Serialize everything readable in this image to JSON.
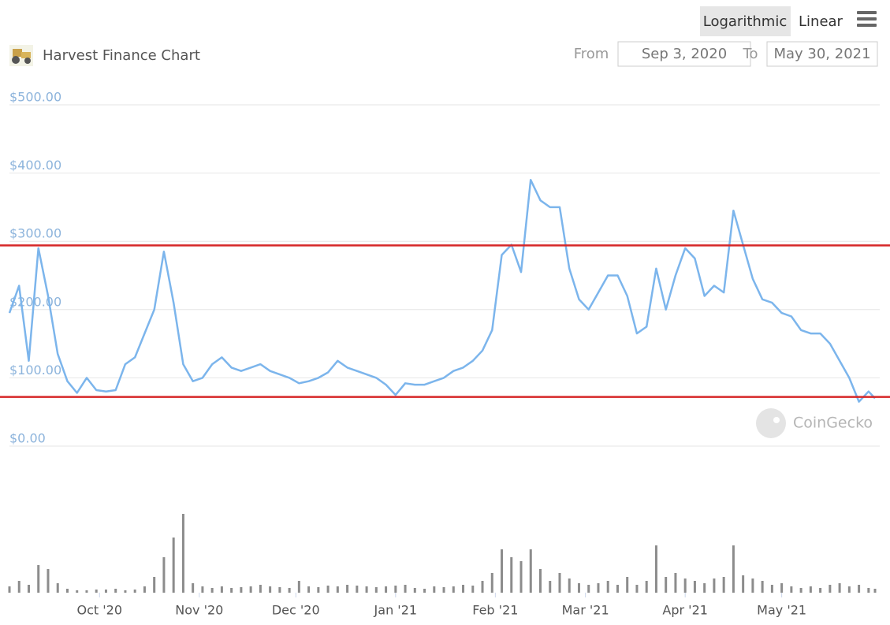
{
  "chart_data": {
    "type": "line",
    "title": "Harvest Finance Chart",
    "controls": {
      "scale_buttons": [
        "Logarithmic",
        "Linear"
      ],
      "from_label": "From",
      "from_value": "Sep 3, 2020",
      "to_label": "To",
      "to_value": "May 30, 2021"
    },
    "watermark": "CoinGecko",
    "log_scale": false,
    "grid": true,
    "color": "#7cb5ec",
    "x": [
      "2020-09-03",
      "2020-09-06",
      "2020-09-09",
      "2020-09-12",
      "2020-09-15",
      "2020-09-18",
      "2020-09-21",
      "2020-09-24",
      "2020-09-27",
      "2020-09-30",
      "2020-10-03",
      "2020-10-06",
      "2020-10-09",
      "2020-10-12",
      "2020-10-15",
      "2020-10-18",
      "2020-10-21",
      "2020-10-24",
      "2020-10-27",
      "2020-10-30",
      "2020-11-02",
      "2020-11-05",
      "2020-11-08",
      "2020-11-11",
      "2020-11-14",
      "2020-11-17",
      "2020-11-20",
      "2020-11-23",
      "2020-11-26",
      "2020-11-29",
      "2020-12-02",
      "2020-12-05",
      "2020-12-08",
      "2020-12-11",
      "2020-12-14",
      "2020-12-17",
      "2020-12-20",
      "2020-12-23",
      "2020-12-26",
      "2020-12-29",
      "2021-01-01",
      "2021-01-04",
      "2021-01-07",
      "2021-01-10",
      "2021-01-13",
      "2021-01-16",
      "2021-01-19",
      "2021-01-22",
      "2021-01-25",
      "2021-01-28",
      "2021-01-31",
      "2021-02-03",
      "2021-02-06",
      "2021-02-09",
      "2021-02-12",
      "2021-02-15",
      "2021-02-18",
      "2021-02-21",
      "2021-02-24",
      "2021-02-27",
      "2021-03-02",
      "2021-03-05",
      "2021-03-08",
      "2021-03-11",
      "2021-03-14",
      "2021-03-17",
      "2021-03-20",
      "2021-03-23",
      "2021-03-26",
      "2021-03-29",
      "2021-04-01",
      "2021-04-04",
      "2021-04-07",
      "2021-04-10",
      "2021-04-13",
      "2021-04-16",
      "2021-04-19",
      "2021-04-22",
      "2021-04-25",
      "2021-04-28",
      "2021-05-01",
      "2021-05-04",
      "2021-05-07",
      "2021-05-10",
      "2021-05-13",
      "2021-05-16",
      "2021-05-19",
      "2021-05-22",
      "2021-05-25",
      "2021-05-28",
      "2021-05-30"
    ],
    "values": [
      195,
      235,
      125,
      290,
      220,
      135,
      95,
      78,
      100,
      82,
      80,
      82,
      120,
      130,
      165,
      200,
      285,
      210,
      120,
      95,
      100,
      120,
      130,
      115,
      110,
      115,
      120,
      110,
      105,
      100,
      92,
      95,
      100,
      108,
      125,
      115,
      110,
      105,
      100,
      90,
      75,
      92,
      90,
      90,
      95,
      100,
      110,
      115,
      125,
      140,
      170,
      280,
      295,
      255,
      390,
      360,
      350,
      350,
      260,
      215,
      200,
      225,
      250,
      250,
      220,
      165,
      175,
      260,
      200,
      250,
      290,
      275,
      220,
      235,
      225,
      345,
      295,
      245,
      215,
      210,
      195,
      190,
      170,
      165,
      165,
      150,
      125,
      100,
      65,
      80,
      70
    ],
    "volume": {
      "color": "#8c8c8c",
      "values": [
        8,
        15,
        10,
        35,
        30,
        12,
        5,
        3,
        3,
        4,
        4,
        5,
        3,
        4,
        8,
        20,
        45,
        70,
        100,
        12,
        8,
        6,
        8,
        6,
        7,
        8,
        10,
        8,
        7,
        6,
        15,
        8,
        7,
        9,
        8,
        10,
        9,
        8,
        7,
        8,
        9,
        10,
        6,
        5,
        8,
        7,
        8,
        10,
        9,
        15,
        25,
        55,
        45,
        40,
        55,
        30,
        15,
        25,
        18,
        12,
        10,
        12,
        15,
        10,
        20,
        10,
        15,
        60,
        20,
        25,
        18,
        15,
        12,
        18,
        20,
        60,
        22,
        18,
        15,
        10,
        12,
        8,
        6,
        8,
        6,
        10,
        12,
        8,
        10,
        6,
        5
      ]
    },
    "xlim": [
      "2020-09-03",
      "2021-05-30"
    ],
    "xticks": [
      {
        "value": "2020-10-01",
        "label": "Oct '20"
      },
      {
        "value": "2020-11-01",
        "label": "Nov '20"
      },
      {
        "value": "2020-12-01",
        "label": "Dec '20"
      },
      {
        "value": "2021-01-01",
        "label": "Jan '21"
      },
      {
        "value": "2021-02-01",
        "label": "Feb '21"
      },
      {
        "value": "2021-03-01",
        "label": "Mar '21"
      },
      {
        "value": "2021-04-01",
        "label": "Apr '21"
      },
      {
        "value": "2021-05-01",
        "label": "May '21"
      }
    ],
    "ylim": [
      0,
      500
    ],
    "yticks": [
      {
        "value": 0,
        "label": "$0.00"
      },
      {
        "value": 100,
        "label": "$100.00"
      },
      {
        "value": 200,
        "label": "$200.00"
      },
      {
        "value": 300,
        "label": "$300.00"
      },
      {
        "value": 400,
        "label": "$400.00"
      },
      {
        "value": 500,
        "label": "$500.00"
      }
    ],
    "reference_lines": [
      {
        "value": 294,
        "color": "#d62728"
      },
      {
        "value": 72,
        "color": "#d62728"
      }
    ]
  }
}
